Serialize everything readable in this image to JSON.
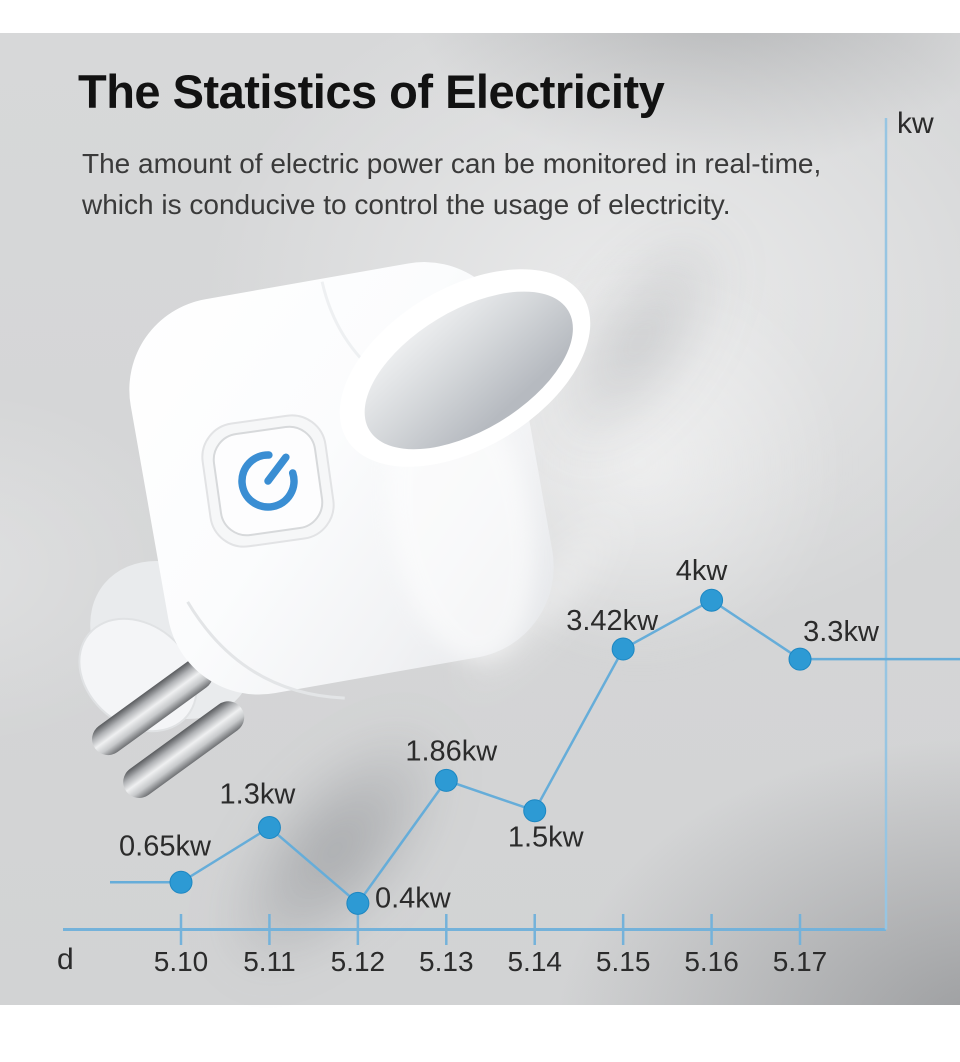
{
  "header": {
    "title": "The Statistics of Electricity",
    "subtitle_line1": "The amount of electric power can be monitored in real-time,",
    "subtitle_line2": "which is conducive to control the usage of electricity."
  },
  "device": {
    "name": "smart plug with power button",
    "power_button_icon": "power-icon",
    "power_icon_color": "#3a8ed3"
  },
  "chart_data": {
    "type": "line",
    "title": "",
    "xlabel": "d",
    "ylabel": "kw",
    "categories": [
      "5.10",
      "5.11",
      "5.12",
      "5.13",
      "5.14",
      "5.15",
      "5.16",
      "5.17"
    ],
    "values": [
      0.65,
      1.3,
      0.4,
      1.86,
      1.5,
      3.42,
      4,
      3.3
    ],
    "point_labels": [
      "0.65kw",
      "1.3kw",
      "0.4kw",
      "1.86kw",
      "1.5kw",
      "3.42kw",
      "4kw",
      "3.3kw"
    ],
    "ylim": [
      0,
      4.5
    ],
    "grid": false,
    "legend": "none",
    "line_color": "#66add9",
    "dot_color": "#2d9ad4",
    "dot_edge_color": "#1d87c2",
    "axis_color": "#74b2da",
    "y_axis_color": "#97c5e2",
    "label_color": "#2b2b2b"
  }
}
